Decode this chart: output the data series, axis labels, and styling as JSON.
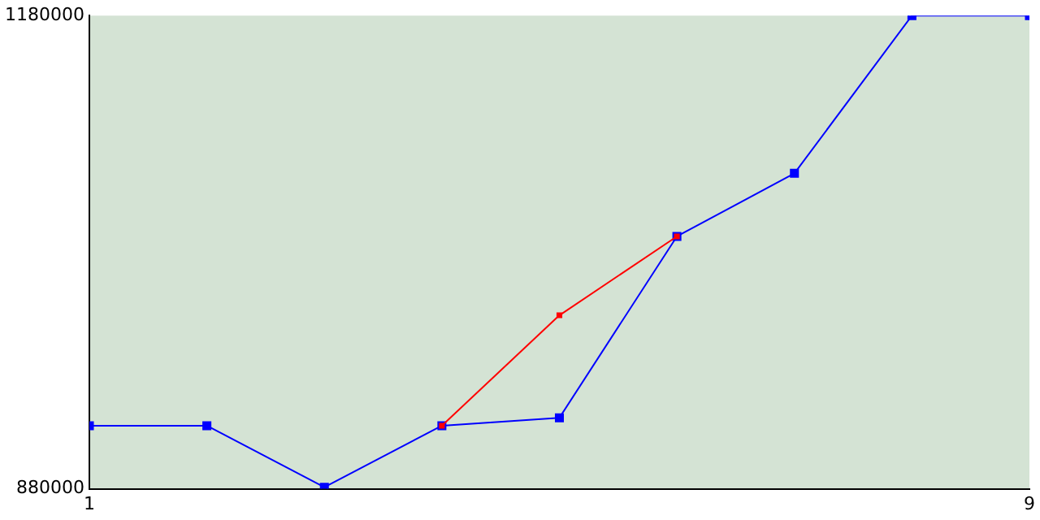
{
  "chart_data": {
    "type": "line",
    "x": [
      1,
      2,
      3,
      4,
      5,
      6,
      7,
      8,
      9
    ],
    "xlim": [
      1,
      9
    ],
    "xticks": [
      1,
      9
    ],
    "ylim": [
      880000,
      1180000
    ],
    "yticks": [
      880000,
      1180000
    ],
    "grid": false,
    "legend": false,
    "marker": "square",
    "line_style": "solid",
    "series": [
      {
        "color": "#ff0000",
        "values": [
          null,
          null,
          null,
          920000,
          990000,
          1040000,
          null,
          null,
          null
        ]
      },
      {
        "color": "#0000ff",
        "values": [
          920000,
          920000,
          881000,
          920000,
          925000,
          1040000,
          1080000,
          1180000,
          1180000
        ]
      }
    ]
  }
}
